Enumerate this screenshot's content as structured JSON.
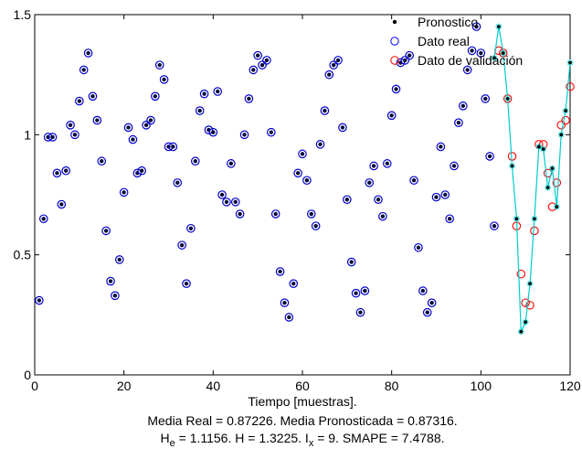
{
  "chart_data": {
    "type": "scatter",
    "title": "",
    "xlabel": "Tiempo [muestras].",
    "ylabel": "",
    "xlim": [
      0,
      120
    ],
    "ylim": [
      0,
      1.5
    ],
    "xticks": [
      0,
      20,
      40,
      60,
      80,
      100,
      120
    ],
    "xtick_labels": [
      "0",
      "20",
      "40",
      "60",
      "80",
      "100",
      "120"
    ],
    "yticks": [
      0,
      0.5,
      1,
      1.5
    ],
    "ytick_labels": [
      "0",
      "0.5",
      "1",
      "1.5"
    ],
    "grid": false,
    "legend_position": "top-right",
    "legend": [
      {
        "label": "Pronostico",
        "marker": "dot",
        "color": "#000000"
      },
      {
        "label": "Dato real",
        "marker": "circle",
        "color": "#0000ff"
      },
      {
        "label": "Dato de validación",
        "marker": "circle",
        "color": "#ff0000"
      }
    ],
    "stats_lines": [
      "Media Real = 0.87226. Media Pronosticada = 0.87316.",
      {
        "H_sym": "H",
        "H_sub": "e",
        "H_val": " = 1.1156. H = 1.3225. I",
        "l_sub": "x",
        "tail": " = 9. SMAPE = 7.4788."
      }
    ],
    "series": [
      {
        "name": "Dato real",
        "color": "#0000cc",
        "x": [
          1,
          2,
          3,
          4,
          5,
          6,
          7,
          8,
          9,
          10,
          11,
          12,
          13,
          14,
          15,
          16,
          17,
          18,
          19,
          20,
          21,
          22,
          23,
          24,
          25,
          26,
          27,
          28,
          29,
          30,
          31,
          32,
          33,
          34,
          35,
          36,
          37,
          38,
          39,
          40,
          41,
          42,
          43,
          44,
          45,
          46,
          47,
          48,
          49,
          50,
          51,
          52,
          53,
          54,
          55,
          56,
          57,
          58,
          59,
          60,
          61,
          62,
          63,
          64,
          65,
          66,
          67,
          68,
          69,
          70,
          71,
          72,
          73,
          74,
          75,
          76,
          77,
          78,
          79,
          80,
          81,
          82,
          83,
          84,
          85,
          86,
          87,
          88,
          89,
          90,
          91,
          92,
          93,
          94,
          95,
          96,
          97,
          98,
          99,
          100,
          101,
          102,
          103
        ],
        "y": [
          0.31,
          0.65,
          0.99,
          0.99,
          0.84,
          0.71,
          0.85,
          1.04,
          1.0,
          1.14,
          1.27,
          1.34,
          1.16,
          1.06,
          0.89,
          0.6,
          0.39,
          0.33,
          0.48,
          0.76,
          1.03,
          0.98,
          0.84,
          0.85,
          1.04,
          1.06,
          1.16,
          1.29,
          1.23,
          0.95,
          0.95,
          0.8,
          0.54,
          0.38,
          0.61,
          0.89,
          1.1,
          1.17,
          1.02,
          1.01,
          1.18,
          0.75,
          0.72,
          0.88,
          0.72,
          0.67,
          1.0,
          1.15,
          1.27,
          1.33,
          1.29,
          1.31,
          1.01,
          0.67,
          0.43,
          0.3,
          0.24,
          0.38,
          0.84,
          0.92,
          0.81,
          0.67,
          0.62,
          0.96,
          1.1,
          1.25,
          1.29,
          1.31,
          1.03,
          0.73,
          0.47,
          0.34,
          0.26,
          0.35,
          0.8,
          0.87,
          0.73,
          0.66,
          0.88,
          1.08,
          1.19,
          1.3,
          1.31,
          1.33,
          0.81,
          0.53,
          0.35,
          0.26,
          0.3,
          0.74,
          0.95,
          0.75,
          0.65,
          0.87,
          1.05,
          1.12,
          1.27,
          1.35,
          1.45,
          1.34,
          1.15,
          0.91,
          0.62
        ]
      },
      {
        "name": "Dato de validación",
        "color": "#ff0000",
        "x": [
          104,
          105,
          106,
          107,
          108,
          109,
          110,
          111,
          112,
          113,
          114,
          115,
          116,
          117,
          118,
          119,
          120
        ],
        "y": [
          1.35,
          1.34,
          1.15,
          0.91,
          0.62,
          0.42,
          0.3,
          0.29,
          0.6,
          0.96,
          0.96,
          0.84,
          0.7,
          0.8,
          1.04,
          1.06,
          1.2
        ]
      },
      {
        "name": "Pronostico",
        "color": "#00dddd",
        "x": [
          103,
          104,
          105,
          106,
          107,
          108,
          109,
          110,
          111,
          112,
          113,
          114,
          115,
          116,
          117,
          118,
          119,
          120
        ],
        "y": [
          1.32,
          1.45,
          1.34,
          1.15,
          0.87,
          0.65,
          0.18,
          0.22,
          0.38,
          0.65,
          0.95,
          0.94,
          0.78,
          0.86,
          0.7,
          1.0,
          1.1,
          1.3
        ]
      }
    ]
  }
}
